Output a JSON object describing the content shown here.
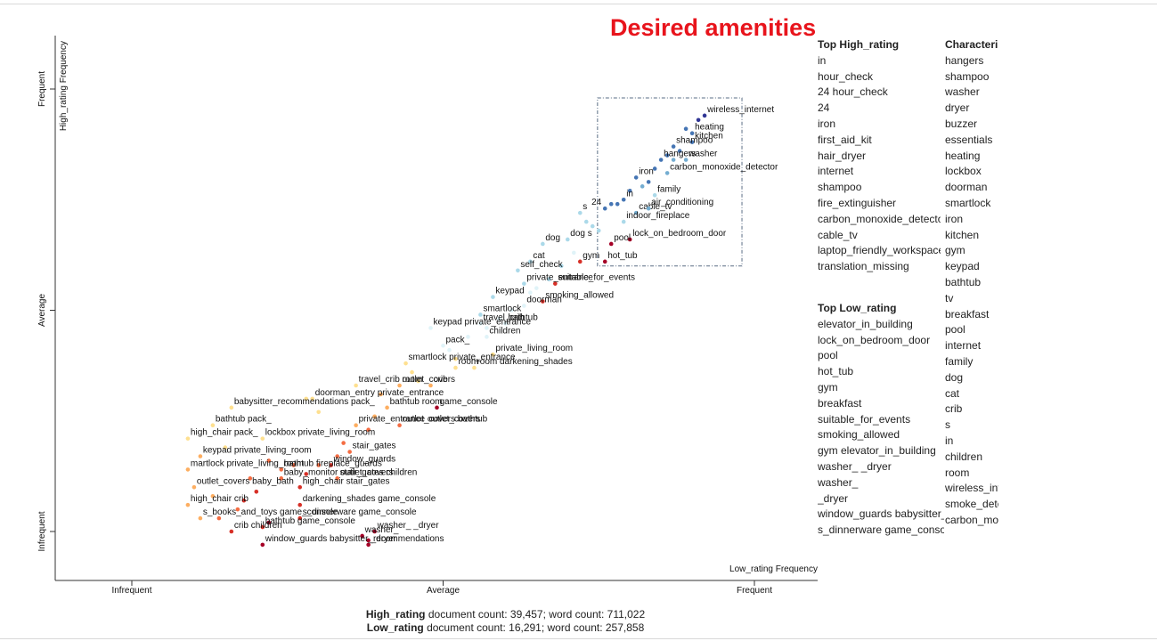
{
  "headline": "Desired amenities",
  "colors": {
    "headline": "#e8141c",
    "scale": [
      "#a50026",
      "#d73027",
      "#f46d43",
      "#fdae61",
      "#fee090",
      "#e0f3f8",
      "#abd9e9",
      "#74add1",
      "#4575b4",
      "#313695"
    ]
  },
  "chart_data": {
    "type": "scatter",
    "xlabel": "Low_rating Frequency",
    "ylabel": "High_rating Frequency",
    "x_ticks": [
      "Infrequent",
      "Average",
      "Frequent"
    ],
    "y_ticks": [
      "Infrequent",
      "Average",
      "Frequent"
    ],
    "xlim": [
      0,
      1
    ],
    "ylim": [
      0,
      1
    ],
    "grid": false,
    "highlight_box_label": "Desired amenities",
    "points": [
      {
        "label": "wireless_internet",
        "x": 0.92,
        "y": 0.94,
        "score": 0.95
      },
      {
        "label": "heating",
        "x": 0.9,
        "y": 0.9,
        "score": 0.9
      },
      {
        "label": "kitchen",
        "x": 0.9,
        "y": 0.88,
        "score": 0.88
      },
      {
        "label": "shampoo",
        "x": 0.87,
        "y": 0.87,
        "score": 0.92
      },
      {
        "label": "washer",
        "x": 0.89,
        "y": 0.84,
        "score": 0.8
      },
      {
        "label": "hangers",
        "x": 0.85,
        "y": 0.84,
        "score": 0.88
      },
      {
        "label": "carbon_monoxide_detector",
        "x": 0.86,
        "y": 0.81,
        "score": 0.78
      },
      {
        "label": "iron",
        "x": 0.81,
        "y": 0.8,
        "score": 0.9
      },
      {
        "label": "family",
        "x": 0.84,
        "y": 0.76,
        "score": 0.72
      },
      {
        "label": "in",
        "x": 0.79,
        "y": 0.75,
        "score": 0.9
      },
      {
        "label": "cable_tv",
        "x": 0.81,
        "y": 0.72,
        "score": 0.82
      },
      {
        "label": "air_conditioning",
        "x": 0.83,
        "y": 0.73,
        "score": 0.76
      },
      {
        "label": "24",
        "x": 0.76,
        "y": 0.73,
        "score": 0.92
      },
      {
        "label": "indoor_fireplace",
        "x": 0.79,
        "y": 0.7,
        "score": 0.7
      },
      {
        "label": "s",
        "x": 0.72,
        "y": 0.72,
        "score": 0.7
      },
      {
        "label": "lock_on_bedroom_door",
        "x": 0.8,
        "y": 0.66,
        "score": 0.05
      },
      {
        "label": "pool",
        "x": 0.77,
        "y": 0.65,
        "score": 0.05
      },
      {
        "label": "hot_tub",
        "x": 0.76,
        "y": 0.61,
        "score": 0.05
      },
      {
        "label": "dog s",
        "x": 0.7,
        "y": 0.66,
        "score": 0.65
      },
      {
        "label": "dog",
        "x": 0.66,
        "y": 0.65,
        "score": 0.65
      },
      {
        "label": "cat",
        "x": 0.64,
        "y": 0.61,
        "score": 0.65
      },
      {
        "label": "gym",
        "x": 0.72,
        "y": 0.61,
        "score": 0.08
      },
      {
        "label": "self_check",
        "x": 0.62,
        "y": 0.59,
        "score": 0.65
      },
      {
        "label": "suitable_for_events",
        "x": 0.68,
        "y": 0.56,
        "score": 0.06
      },
      {
        "label": "private_entrance",
        "x": 0.63,
        "y": 0.56,
        "score": 0.62
      },
      {
        "label": "keypad",
        "x": 0.58,
        "y": 0.53,
        "score": 0.62
      },
      {
        "label": "smoking_allowed",
        "x": 0.66,
        "y": 0.52,
        "score": 0.07
      },
      {
        "label": "smartlock",
        "x": 0.56,
        "y": 0.49,
        "score": 0.62
      },
      {
        "label": "doorman",
        "x": 0.63,
        "y": 0.51,
        "score": 0.6
      },
      {
        "label": "bathtub",
        "x": 0.6,
        "y": 0.47,
        "score": 0.6
      },
      {
        "label": "travel_crib",
        "x": 0.56,
        "y": 0.47,
        "score": 0.58
      },
      {
        "label": "keypad private_entrance",
        "x": 0.48,
        "y": 0.46,
        "score": 0.55
      },
      {
        "label": "children",
        "x": 0.57,
        "y": 0.44,
        "score": 0.58
      },
      {
        "label": "pack_",
        "x": 0.5,
        "y": 0.42,
        "score": 0.53
      },
      {
        "label": "private_living_room",
        "x": 0.58,
        "y": 0.4,
        "score": 0.4
      },
      {
        "label": "room darkening_shades",
        "x": 0.55,
        "y": 0.37,
        "score": 0.4
      },
      {
        "label": "room",
        "x": 0.52,
        "y": 0.37,
        "score": 0.45
      },
      {
        "label": "smartlock private_entrance",
        "x": 0.44,
        "y": 0.38,
        "score": 0.45
      },
      {
        "label": "outlet_covers",
        "x": 0.43,
        "y": 0.33,
        "score": 0.35
      },
      {
        "label": "crib",
        "x": 0.48,
        "y": 0.33,
        "score": 0.3
      },
      {
        "label": "travel_crib room",
        "x": 0.36,
        "y": 0.33,
        "score": 0.4
      },
      {
        "label": "doorman_entry private_entrance",
        "x": 0.29,
        "y": 0.3,
        "score": 0.4
      },
      {
        "label": "game_console",
        "x": 0.49,
        "y": 0.28,
        "score": 0.05
      },
      {
        "label": "bathtub room",
        "x": 0.41,
        "y": 0.28,
        "score": 0.3
      },
      {
        "label": "babysitter_recommendations pack_",
        "x": 0.16,
        "y": 0.28,
        "score": 0.4
      },
      {
        "label": "outlet_covers bathtub",
        "x": 0.43,
        "y": 0.24,
        "score": 0.22
      },
      {
        "label": "private_entrance outlet_covers",
        "x": 0.36,
        "y": 0.24,
        "score": 0.3
      },
      {
        "label": "bathtub pack_",
        "x": 0.13,
        "y": 0.24,
        "score": 0.4
      },
      {
        "label": "lockbox private_living_room",
        "x": 0.21,
        "y": 0.21,
        "score": 0.4
      },
      {
        "label": "high_chair pack_",
        "x": 0.09,
        "y": 0.21,
        "score": 0.4
      },
      {
        "label": "stair_gates",
        "x": 0.35,
        "y": 0.18,
        "score": 0.22
      },
      {
        "label": "keypad private_living_room",
        "x": 0.11,
        "y": 0.17,
        "score": 0.38
      },
      {
        "label": "window_guards",
        "x": 0.32,
        "y": 0.15,
        "score": 0.12
      },
      {
        "label": "bathtub fireplace_guards",
        "x": 0.24,
        "y": 0.14,
        "score": 0.22
      },
      {
        "label": "martlock private_living_room",
        "x": 0.09,
        "y": 0.14,
        "score": 0.38
      },
      {
        "label": "stair_gates children",
        "x": 0.33,
        "y": 0.12,
        "score": 0.18
      },
      {
        "label": "baby_monitor outlet_covers",
        "x": 0.24,
        "y": 0.12,
        "score": 0.2
      },
      {
        "label": "high_chair stair_gates",
        "x": 0.27,
        "y": 0.1,
        "score": 0.12
      },
      {
        "label": "outlet_covers baby_bath",
        "x": 0.1,
        "y": 0.1,
        "score": 0.38
      },
      {
        "label": "darkening_shades game_console",
        "x": 0.27,
        "y": 0.06,
        "score": 0.15
      },
      {
        "label": "high_chair crib",
        "x": 0.09,
        "y": 0.06,
        "score": 0.35
      },
      {
        "label": "s_dinnerware game_console",
        "x": 0.27,
        "y": 0.03,
        "score": 0.1
      },
      {
        "label": "s_books_and_toys game_console",
        "x": 0.11,
        "y": 0.03,
        "score": 0.3
      },
      {
        "label": "washer_ _dryer",
        "x": 0.39,
        "y": 0.0,
        "score": 0.05
      },
      {
        "label": "washer_",
        "x": 0.37,
        "y": -0.01,
        "score": 0.05
      },
      {
        "label": "bathtub game_console",
        "x": 0.21,
        "y": 0.01,
        "score": 0.1
      },
      {
        "label": "crib children",
        "x": 0.16,
        "y": 0.0,
        "score": 0.12
      },
      {
        "label": "_dryer",
        "x": 0.38,
        "y": -0.03,
        "score": 0.05
      },
      {
        "label": "window_guards babysitter_recommendations",
        "x": 0.21,
        "y": -0.03,
        "score": 0.05
      }
    ],
    "extra_points": [
      {
        "x": 0.91,
        "y": 0.93,
        "score": 0.95
      },
      {
        "x": 0.89,
        "y": 0.91,
        "score": 0.92
      },
      {
        "x": 0.88,
        "y": 0.86,
        "score": 0.85
      },
      {
        "x": 0.87,
        "y": 0.84,
        "score": 0.82
      },
      {
        "x": 0.86,
        "y": 0.85,
        "score": 0.9
      },
      {
        "x": 0.84,
        "y": 0.82,
        "score": 0.85
      },
      {
        "x": 0.83,
        "y": 0.79,
        "score": 0.88
      },
      {
        "x": 0.82,
        "y": 0.78,
        "score": 0.8
      },
      {
        "x": 0.8,
        "y": 0.77,
        "score": 0.92
      },
      {
        "x": 0.78,
        "y": 0.74,
        "score": 0.86
      },
      {
        "x": 0.77,
        "y": 0.74,
        "score": 0.94
      },
      {
        "x": 0.75,
        "y": 0.68,
        "score": 0.7
      },
      {
        "x": 0.74,
        "y": 0.69,
        "score": 0.65
      },
      {
        "x": 0.73,
        "y": 0.7,
        "score": 0.68
      },
      {
        "x": 0.71,
        "y": 0.63,
        "score": 0.6
      },
      {
        "x": 0.69,
        "y": 0.6,
        "score": 0.62
      },
      {
        "x": 0.67,
        "y": 0.57,
        "score": 0.62
      },
      {
        "x": 0.65,
        "y": 0.55,
        "score": 0.6
      },
      {
        "x": 0.64,
        "y": 0.54,
        "score": 0.58
      },
      {
        "x": 0.61,
        "y": 0.5,
        "score": 0.6
      },
      {
        "x": 0.59,
        "y": 0.48,
        "score": 0.58
      },
      {
        "x": 0.57,
        "y": 0.46,
        "score": 0.55
      },
      {
        "x": 0.54,
        "y": 0.44,
        "score": 0.55
      },
      {
        "x": 0.51,
        "y": 0.41,
        "score": 0.5
      },
      {
        "x": 0.52,
        "y": 0.39,
        "score": 0.48
      },
      {
        "x": 0.46,
        "y": 0.34,
        "score": 0.4
      },
      {
        "x": 0.45,
        "y": 0.36,
        "score": 0.42
      },
      {
        "x": 0.4,
        "y": 0.31,
        "score": 0.35
      },
      {
        "x": 0.39,
        "y": 0.26,
        "score": 0.28
      },
      {
        "x": 0.38,
        "y": 0.23,
        "score": 0.25
      },
      {
        "x": 0.34,
        "y": 0.2,
        "score": 0.25
      },
      {
        "x": 0.33,
        "y": 0.17,
        "score": 0.2
      },
      {
        "x": 0.3,
        "y": 0.15,
        "score": 0.18
      },
      {
        "x": 0.28,
        "y": 0.13,
        "score": 0.15
      },
      {
        "x": 0.26,
        "y": 0.15,
        "score": 0.22
      },
      {
        "x": 0.2,
        "y": 0.09,
        "score": 0.15
      },
      {
        "x": 0.18,
        "y": 0.07,
        "score": 0.12
      },
      {
        "x": 0.17,
        "y": 0.05,
        "score": 0.18
      },
      {
        "x": 0.14,
        "y": 0.03,
        "score": 0.22
      },
      {
        "x": 0.13,
        "y": 0.08,
        "score": 0.3
      },
      {
        "x": 0.28,
        "y": 0.3,
        "score": 0.4
      },
      {
        "x": 0.3,
        "y": 0.27,
        "score": 0.4
      },
      {
        "x": 0.15,
        "y": 0.19,
        "score": 0.4
      },
      {
        "x": 0.22,
        "y": 0.16,
        "score": 0.25
      },
      {
        "x": 0.19,
        "y": 0.12,
        "score": 0.2
      },
      {
        "x": 0.22,
        "y": 0.02,
        "score": 0.02
      },
      {
        "x": 0.38,
        "y": -0.02,
        "score": 0.05
      }
    ]
  },
  "top_high": {
    "title": "Top High_rating",
    "items": [
      "in",
      "hour_check",
      "24 hour_check",
      "24",
      "iron",
      "first_aid_kit",
      "hair_dryer",
      "internet",
      "shampoo",
      "fire_extinguisher",
      "carbon_monoxide_detector",
      "cable_tv",
      "laptop_friendly_workspace",
      "translation_missing"
    ]
  },
  "top_low": {
    "title": "Top Low_rating",
    "items": [
      "elevator_in_building",
      "lock_on_bedroom_door",
      "pool",
      "hot_tub",
      "gym",
      "breakfast",
      "suitable_for_events",
      "smoking_allowed",
      "gym elevator_in_building",
      "washer_ _dryer",
      "washer_",
      "_dryer",
      "window_guards babysitter_recommendati",
      "s_dinnerware game_console"
    ]
  },
  "characteristic": {
    "title": "Characteris",
    "items": [
      "hangers",
      "shampoo",
      "washer",
      "dryer",
      "buzzer",
      "essentials",
      "heating",
      "lockbox",
      "doorman",
      "smartlock",
      "iron",
      "kitchen",
      "gym",
      "keypad",
      "bathtub",
      "tv",
      "breakfast",
      "pool",
      "internet",
      "family",
      "dog",
      "cat",
      "crib",
      "s",
      "in",
      "children",
      "room",
      "wireless_inte",
      "smoke_dete",
      "carbon_mon"
    ]
  },
  "counts": {
    "high_name": "High_rating",
    "high_text": " document count: 39,457; word count: 711,022",
    "low_name": "Low_rating",
    "low_text": " document count: 16,291; word count: 257,858"
  }
}
